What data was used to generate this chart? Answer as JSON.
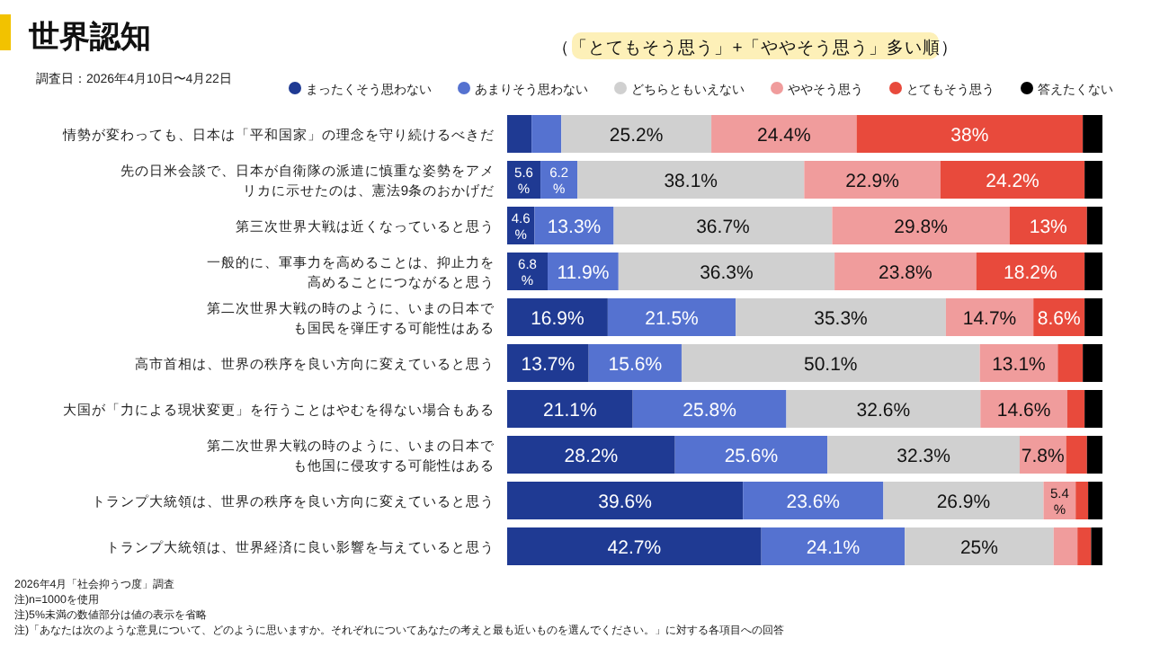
{
  "chart_data": {
    "type": "bar",
    "orientation": "horizontal",
    "stacked": true,
    "title": "世界認知",
    "subtitle": "（「とてもそう思う」+「ややそう思う」多い順）",
    "categories": [
      "情勢が変わっても、日本は「平和国家」の理念を守り続けるべきだ",
      "先の日米会談で、日本が自衛隊の派遣に慎重な姿勢をアメリカに示せたのは、憲法9条のおかげだ",
      "第三次世界大戦は近くなっていると思う",
      "一般的に、軍事力を高めることは、抑止力を高めることにつながると思う",
      "第二次世界大戦の時のように、いまの日本でも国民を弾圧する可能性はある",
      "高市首相は、世界の秩序を良い方向に変えていると思う",
      "大国が「力による現状変更」を行うことはやむを得ない場合もある",
      "第二次世界大戦の時のように、いまの日本でも他国に侵攻する可能性はある",
      "トランプ大統領は、世界の秩序を良い方向に変えていると思う",
      "トランプ大統領は、世界経済に良い影響を与えていると思う"
    ],
    "xlim": [
      0,
      100
    ],
    "tick_labels": "y",
    "legend": "top",
    "series": [
      {
        "name": "まったくそう思わない",
        "color": "#1f3a93",
        "values": [
          4.1,
          5.6,
          4.6,
          6.8,
          16.9,
          13.7,
          21.1,
          28.2,
          39.6,
          42.7
        ],
        "value_labels": [
          null,
          "5.6%",
          "4.6%",
          "6.8%",
          "16.9%",
          "13.7%",
          "21.1%",
          "28.2%",
          "39.6%",
          "42.7%"
        ]
      },
      {
        "name": "あまりそう思わない",
        "color": "#5572d0",
        "values": [
          5.0,
          6.2,
          13.3,
          11.9,
          21.5,
          15.6,
          25.8,
          25.6,
          23.6,
          24.1
        ],
        "value_labels": [
          null,
          "6.2%",
          "13.3%",
          "11.9%",
          "21.5%",
          "15.6%",
          "25.8%",
          "25.6%",
          "23.6%",
          "24.1%"
        ]
      },
      {
        "name": "どちらともいえない",
        "color": "#d0d0d0",
        "values": [
          25.2,
          38.1,
          36.7,
          36.3,
          35.3,
          50.1,
          32.6,
          32.3,
          26.9,
          25
        ],
        "value_labels": [
          "25.2%",
          "38.1%",
          "36.7%",
          "36.3%",
          "35.3%",
          "50.1%",
          "32.6%",
          "32.3%",
          "26.9%",
          "25%"
        ]
      },
      {
        "name": "ややそう思う",
        "color": "#f09c9c",
        "values": [
          24.4,
          22.9,
          29.8,
          23.8,
          14.7,
          13.1,
          14.6,
          7.8,
          5.4,
          4.0
        ],
        "value_labels": [
          "24.4%",
          "22.9%",
          "29.8%",
          "23.8%",
          "14.7%",
          "13.1%",
          "14.6%",
          "7.8%",
          "5.4%",
          null
        ]
      },
      {
        "name": "とてもそう思う",
        "color": "#e84a3c",
        "values": [
          38,
          24.2,
          13,
          18.2,
          8.6,
          4.2,
          2.9,
          3.5,
          2.1,
          2.3
        ],
        "value_labels": [
          "38%",
          "24.2%",
          "13%",
          "18.2%",
          "8.6%",
          null,
          null,
          null,
          null,
          null
        ]
      },
      {
        "name": "答えたくない",
        "color": "#000000",
        "values": [
          3.3,
          3.0,
          2.6,
          3.0,
          3.0,
          3.3,
          3.0,
          2.6,
          2.4,
          1.9
        ],
        "value_labels": [
          null,
          null,
          null,
          null,
          null,
          null,
          null,
          null,
          null,
          null
        ]
      }
    ],
    "annotations": [
      "調査日：2026年4月10日〜4月22日",
      "2026年4月「社会抑うつ度」調査",
      "注)n=1000を使用",
      "注)5%未満の数値部分は値の表示を省略",
      "注)「あなたは次のような意見について、どのように思いますか。それぞれについてあなたの考えと最も近いものを選んでください。」に対する各項目への回答"
    ]
  }
}
